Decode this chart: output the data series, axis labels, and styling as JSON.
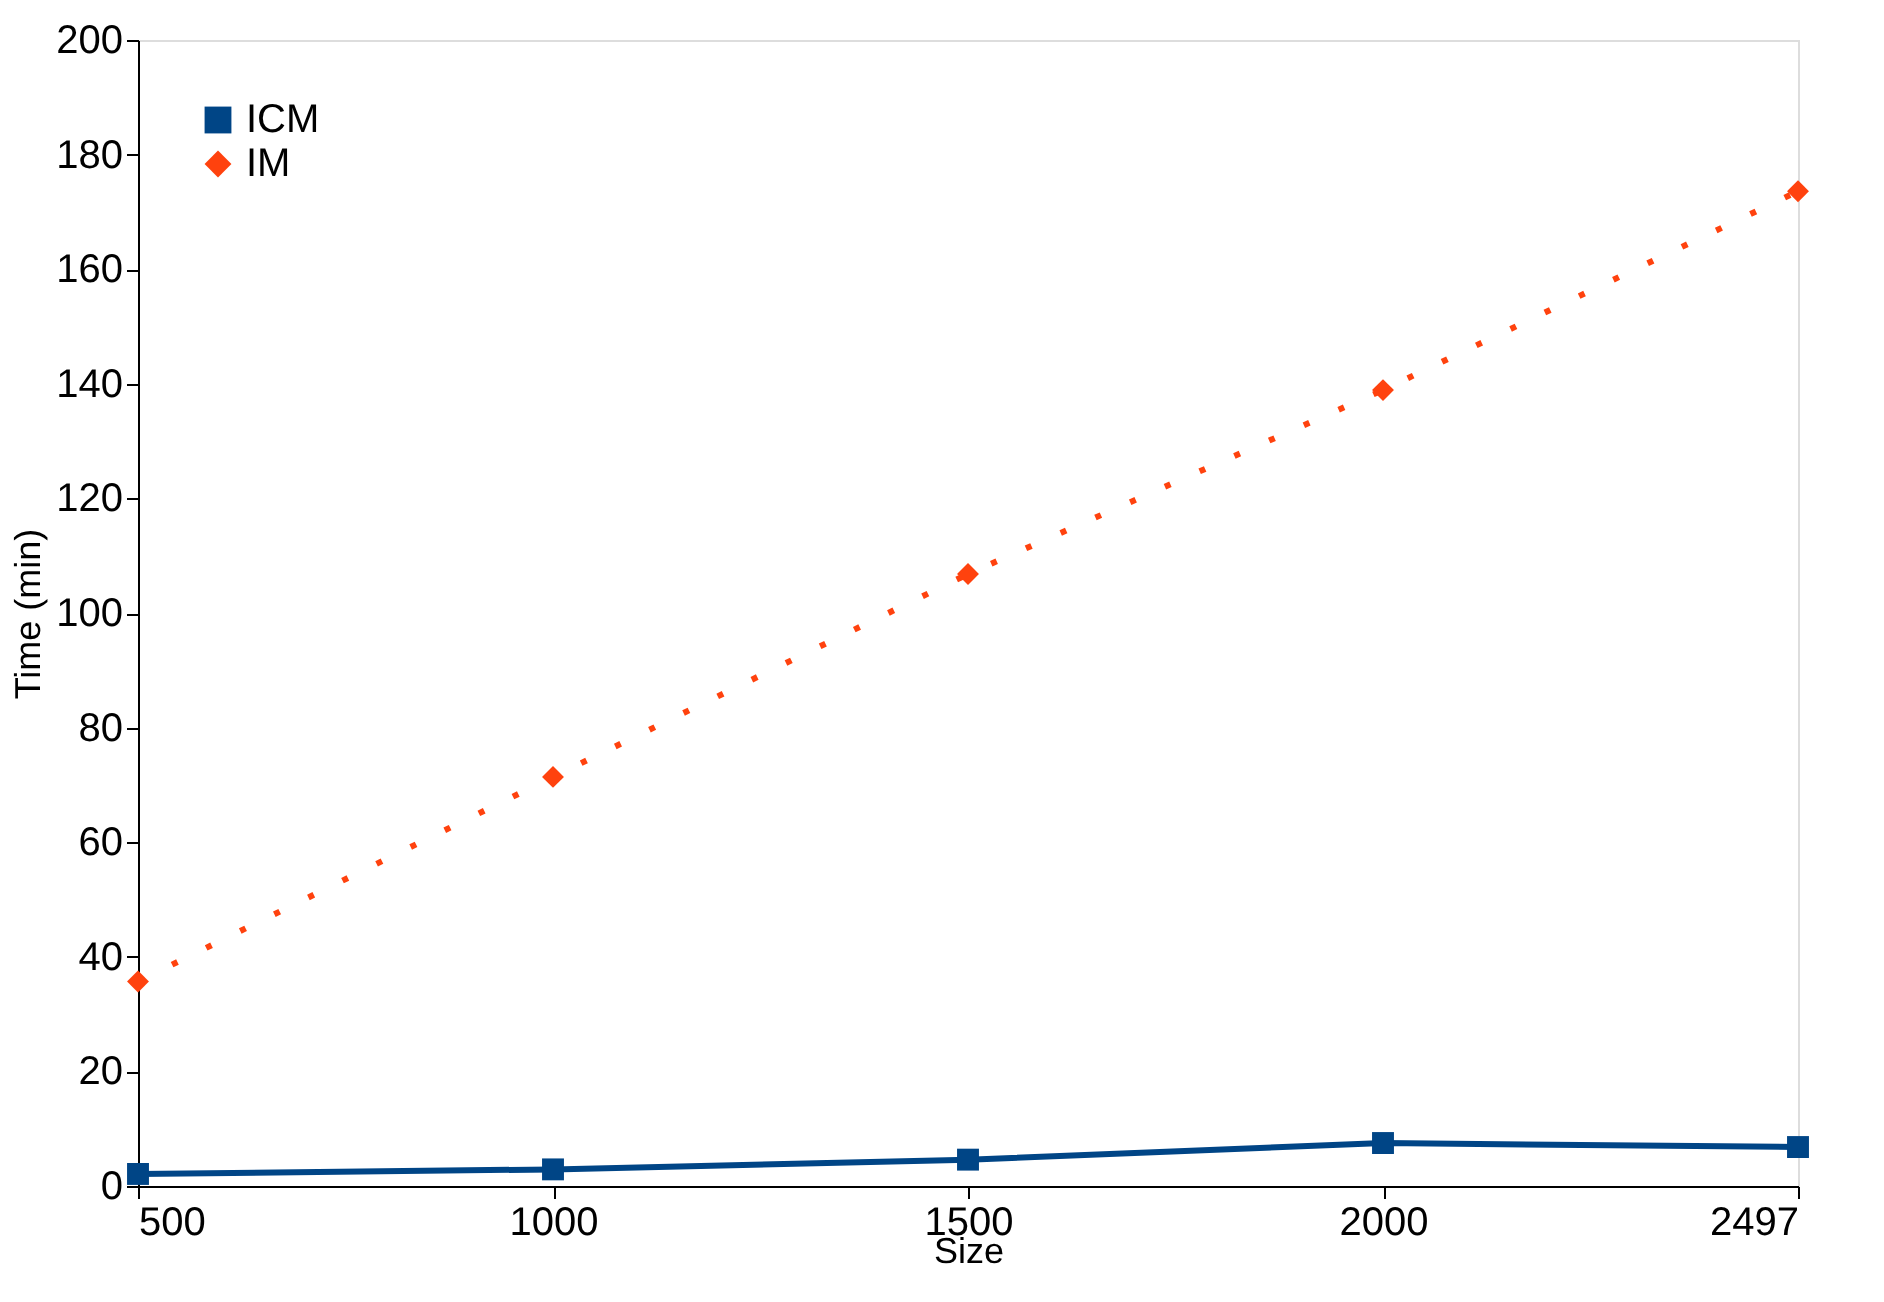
{
  "chart_data": {
    "type": "line",
    "xlabel": "Size",
    "ylabel": "Time (min)",
    "categories": [
      "500",
      "1000",
      "1500",
      "2000",
      "2497"
    ],
    "series": [
      {
        "name": "ICM",
        "color": "#004586",
        "values": [
          2.1,
          2.9,
          4.6,
          7.5,
          6.8
        ],
        "marker": "square",
        "line_style": "solid"
      },
      {
        "name": "IM",
        "color": "#ff420e",
        "values": [
          35.7,
          71.4,
          106.8,
          138.9,
          173.6
        ],
        "marker": "diamond",
        "line_style": "dotted"
      }
    ],
    "ylim": [
      0,
      200
    ],
    "yticks": [
      0,
      20,
      40,
      60,
      80,
      100,
      120,
      140,
      160,
      180,
      200
    ],
    "grid": false,
    "legend": "top left"
  }
}
